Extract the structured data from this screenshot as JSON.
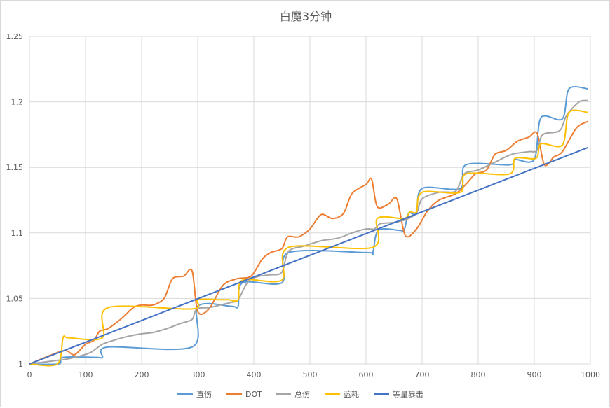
{
  "chart_data": {
    "type": "line",
    "title": "白魔3分钟",
    "xlabel": "",
    "ylabel": "",
    "xlim": [
      0,
      1000
    ],
    "ylim": [
      1,
      1.25
    ],
    "x_ticks": [
      "0",
      "100",
      "200",
      "300",
      "400",
      "500",
      "600",
      "700",
      "800",
      "900",
      "1000"
    ],
    "y_ticks": [
      "1",
      "1.05",
      "1.1",
      "1.15",
      "1.2",
      "1.25"
    ],
    "grid": true,
    "legend_position": "bottom",
    "series": [
      {
        "name": "直伤",
        "color": "#5b9bd5",
        "points": [
          [
            0,
            1
          ],
          [
            52,
            1
          ],
          [
            60,
            1.005
          ],
          [
            120,
            1.005
          ],
          [
            130,
            1.005
          ],
          [
            140,
            1.013
          ],
          [
            290,
            1.013
          ],
          [
            300,
            1.044
          ],
          [
            360,
            1.044
          ],
          [
            372,
            1.044
          ],
          [
            380,
            1.062
          ],
          [
            450,
            1.062
          ],
          [
            462,
            1.085
          ],
          [
            600,
            1.085
          ],
          [
            612,
            1.085
          ],
          [
            622,
            1.102
          ],
          [
            660,
            1.102
          ],
          [
            668,
            1.102
          ],
          [
            676,
            1.115
          ],
          [
            690,
            1.115
          ],
          [
            700,
            1.134
          ],
          [
            768,
            1.134
          ],
          [
            778,
            1.152
          ],
          [
            856,
            1.152
          ],
          [
            866,
            1.156
          ],
          [
            900,
            1.156
          ],
          [
            912,
            1.188
          ],
          [
            950,
            1.187
          ],
          [
            962,
            1.21
          ],
          [
            995,
            1.21
          ]
        ]
      },
      {
        "name": "DOT",
        "color": "#ed7d31",
        "points": [
          [
            0,
            1
          ],
          [
            60,
            1.01
          ],
          [
            80,
            1.007
          ],
          [
            100,
            1.015
          ],
          [
            115,
            1.018
          ],
          [
            125,
            1.025
          ],
          [
            140,
            1.027
          ],
          [
            165,
            1.035
          ],
          [
            185,
            1.043
          ],
          [
            200,
            1.045
          ],
          [
            220,
            1.045
          ],
          [
            240,
            1.05
          ],
          [
            255,
            1.065
          ],
          [
            275,
            1.067
          ],
          [
            290,
            1.071
          ],
          [
            300,
            1.04
          ],
          [
            320,
            1.042
          ],
          [
            345,
            1.06
          ],
          [
            370,
            1.065
          ],
          [
            395,
            1.067
          ],
          [
            415,
            1.08
          ],
          [
            430,
            1.085
          ],
          [
            450,
            1.088
          ],
          [
            460,
            1.097
          ],
          [
            480,
            1.097
          ],
          [
            500,
            1.103
          ],
          [
            520,
            1.114
          ],
          [
            540,
            1.111
          ],
          [
            560,
            1.115
          ],
          [
            575,
            1.13
          ],
          [
            600,
            1.137
          ],
          [
            610,
            1.141
          ],
          [
            620,
            1.12
          ],
          [
            640,
            1.122
          ],
          [
            655,
            1.126
          ],
          [
            670,
            1.098
          ],
          [
            690,
            1.103
          ],
          [
            710,
            1.117
          ],
          [
            730,
            1.125
          ],
          [
            760,
            1.13
          ],
          [
            780,
            1.138
          ],
          [
            795,
            1.145
          ],
          [
            815,
            1.148
          ],
          [
            830,
            1.16
          ],
          [
            850,
            1.163
          ],
          [
            870,
            1.17
          ],
          [
            890,
            1.173
          ],
          [
            905,
            1.176
          ],
          [
            918,
            1.152
          ],
          [
            935,
            1.158
          ],
          [
            950,
            1.162
          ],
          [
            975,
            1.18
          ],
          [
            995,
            1.185
          ]
        ]
      },
      {
        "name": "总伤",
        "color": "#a5a5a5",
        "points": [
          [
            0,
            1
          ],
          [
            55,
            1.003
          ],
          [
            70,
            1.004
          ],
          [
            90,
            1.006
          ],
          [
            110,
            1.009
          ],
          [
            130,
            1.015
          ],
          [
            150,
            1.018
          ],
          [
            175,
            1.021
          ],
          [
            200,
            1.023
          ],
          [
            220,
            1.024
          ],
          [
            245,
            1.027
          ],
          [
            270,
            1.031
          ],
          [
            290,
            1.034
          ],
          [
            298,
            1.042
          ],
          [
            320,
            1.043
          ],
          [
            340,
            1.045
          ],
          [
            360,
            1.047
          ],
          [
            372,
            1.049
          ],
          [
            390,
            1.063
          ],
          [
            410,
            1.067
          ],
          [
            430,
            1.068
          ],
          [
            450,
            1.07
          ],
          [
            462,
            1.086
          ],
          [
            490,
            1.09
          ],
          [
            520,
            1.094
          ],
          [
            550,
            1.096
          ],
          [
            575,
            1.1
          ],
          [
            600,
            1.103
          ],
          [
            615,
            1.103
          ],
          [
            625,
            1.107
          ],
          [
            650,
            1.108
          ],
          [
            670,
            1.11
          ],
          [
            690,
            1.115
          ],
          [
            700,
            1.126
          ],
          [
            730,
            1.131
          ],
          [
            760,
            1.132
          ],
          [
            775,
            1.145
          ],
          [
            800,
            1.148
          ],
          [
            830,
            1.154
          ],
          [
            860,
            1.16
          ],
          [
            890,
            1.162
          ],
          [
            905,
            1.163
          ],
          [
            915,
            1.175
          ],
          [
            945,
            1.178
          ],
          [
            958,
            1.19
          ],
          [
            980,
            1.2
          ],
          [
            995,
            1.201
          ]
        ]
      },
      {
        "name": "蓝耗",
        "color": "#ffc000",
        "points": [
          [
            0,
            1
          ],
          [
            50,
            1
          ],
          [
            60,
            1.02
          ],
          [
            70,
            1.02
          ],
          [
            130,
            1.02
          ],
          [
            140,
            1.043
          ],
          [
            290,
            1.042
          ],
          [
            300,
            1.049
          ],
          [
            340,
            1.049
          ],
          [
            355,
            1.049
          ],
          [
            372,
            1.049
          ],
          [
            380,
            1.064
          ],
          [
            450,
            1.064
          ],
          [
            462,
            1.089
          ],
          [
            612,
            1.089
          ],
          [
            620,
            1.111
          ],
          [
            668,
            1.111
          ],
          [
            678,
            1.116
          ],
          [
            690,
            1.116
          ],
          [
            700,
            1.131
          ],
          [
            768,
            1.131
          ],
          [
            778,
            1.145
          ],
          [
            856,
            1.145
          ],
          [
            866,
            1.157
          ],
          [
            903,
            1.157
          ],
          [
            912,
            1.168
          ],
          [
            950,
            1.167
          ],
          [
            962,
            1.192
          ],
          [
            995,
            1.192
          ]
        ]
      },
      {
        "name": "等量暴击",
        "color": "#4472c4",
        "points": [
          [
            0,
            1
          ],
          [
            995,
            1.165
          ]
        ]
      }
    ]
  }
}
